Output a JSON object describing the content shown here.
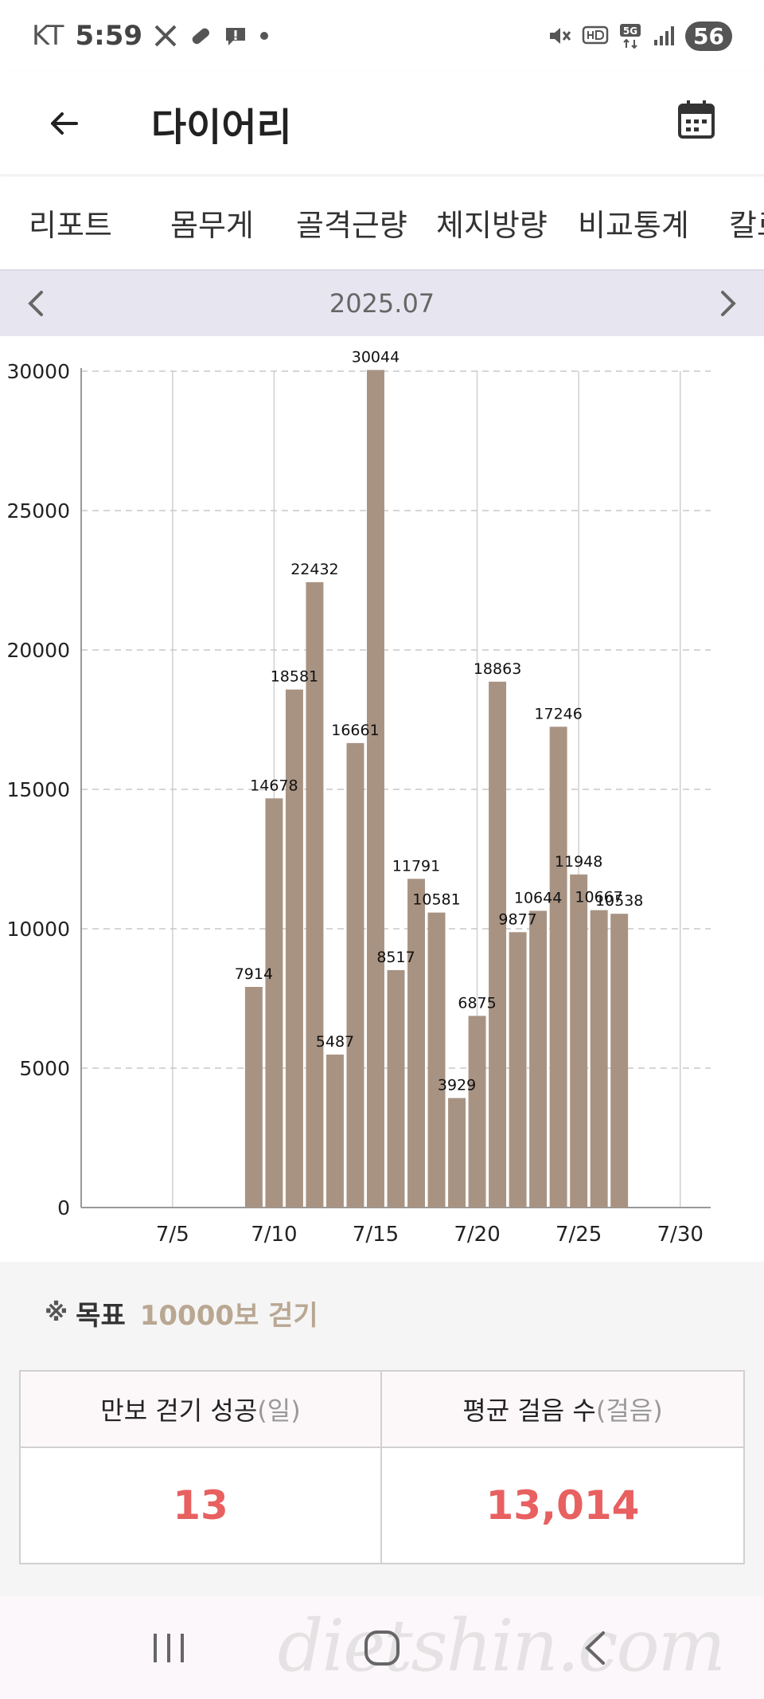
{
  "status_bar": {
    "carrier": "KT",
    "time": "5:59",
    "battery": "56",
    "icons_left": [
      "x-logo-icon",
      "pill-icon",
      "alert-icon",
      "dot-icon"
    ],
    "icons_right": [
      "mute-icon",
      "hd-icon",
      "5g-icon",
      "signal-icon",
      "battery-icon"
    ]
  },
  "app_bar": {
    "title": "다이어리"
  },
  "tabs": [
    "리포트",
    "몸무게",
    "골격근량",
    "체지방량",
    "비교통계",
    "칼로"
  ],
  "month_nav": {
    "label": "2025.07"
  },
  "chart_data": {
    "type": "bar",
    "title": "",
    "xlabel": "",
    "ylabel": "",
    "ylim": [
      0,
      30000
    ],
    "yticks": [
      0,
      5000,
      10000,
      15000,
      20000,
      25000,
      30000
    ],
    "xtick_labels": [
      "7/5",
      "7/10",
      "7/15",
      "7/20",
      "7/25",
      "7/30"
    ],
    "xtick_days": [
      5,
      10,
      15,
      20,
      25,
      30
    ],
    "x_range_days": [
      0.5,
      31.5
    ],
    "grid": true,
    "bar_color": "#a89383",
    "days": [
      9,
      10,
      11,
      12,
      13,
      14,
      15,
      16,
      17,
      18,
      19,
      20,
      21,
      22,
      23,
      24,
      25,
      26,
      27
    ],
    "values": [
      7914,
      14678,
      18581,
      22432,
      5487,
      16661,
      30044,
      8517,
      11791,
      10581,
      3929,
      6875,
      18863,
      9877,
      10644,
      17246,
      11948,
      10667,
      10538
    ],
    "data_labels": [
      "7914",
      "14678",
      "18581",
      "22432",
      "5487",
      "16661",
      "30044",
      "8517",
      "11791",
      "10581",
      "3929",
      "6875",
      "18863",
      "9877",
      "10644",
      "17246",
      "11948",
      "10667",
      "10538"
    ]
  },
  "goal": {
    "mark": "※",
    "label": "목표",
    "value": "10000보 걷기"
  },
  "stats": {
    "success_label": "만보 걷기 성공",
    "success_unit": "(일)",
    "success_value": "13",
    "avg_label": "평균 걸음 수",
    "avg_unit": "(걸음)",
    "avg_value": "13,014"
  },
  "colors": {
    "accent_red": "#e86060",
    "goal_tan": "#b9a792",
    "bar": "#a89383",
    "month_nav_bg": "#e7e6f0"
  },
  "watermark": "dietshin.com"
}
